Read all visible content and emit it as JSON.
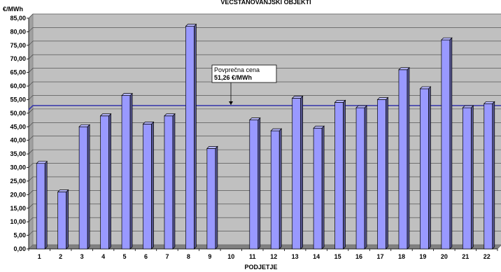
{
  "chart_data": {
    "type": "bar",
    "title": "VEČSTANOVANJSKI OBJEKTI",
    "xlabel": "PODJETJE",
    "ylabel": "€/MWh",
    "categories": [
      "1",
      "2",
      "3",
      "4",
      "5",
      "6",
      "7",
      "8",
      "9",
      "10",
      "11",
      "12",
      "13",
      "14",
      "15",
      "16",
      "17",
      "18",
      "19",
      "20",
      "21",
      "22"
    ],
    "values": [
      31.5,
      21.0,
      45.0,
      49.0,
      56.5,
      46.0,
      49.0,
      82.0,
      37.0,
      null,
      47.5,
      43.5,
      55.5,
      44.5,
      54.0,
      52.0,
      55.0,
      66.0,
      59.0,
      77.0,
      52.0,
      53.5
    ],
    "ylim": [
      0,
      85
    ],
    "yticks": [
      "0,00",
      "5,00",
      "10,00",
      "15,00",
      "20,00",
      "25,00",
      "30,00",
      "35,00",
      "40,00",
      "45,00",
      "50,00",
      "55,00",
      "60,00",
      "65,00",
      "70,00",
      "75,00",
      "80,00",
      "85,00"
    ],
    "grid": true,
    "reference_line": {
      "value": 51.26
    },
    "annotation": {
      "line1": "Povprečna cena",
      "line2": "51,26 €/MWh"
    },
    "colors": {
      "bar_front": "#9999ff",
      "bar_side": "#55558f",
      "bar_top": "#b8b8ff",
      "back_wall": "#c0c0c0",
      "floor": "#808080",
      "avg_line": "#3333aa"
    }
  }
}
